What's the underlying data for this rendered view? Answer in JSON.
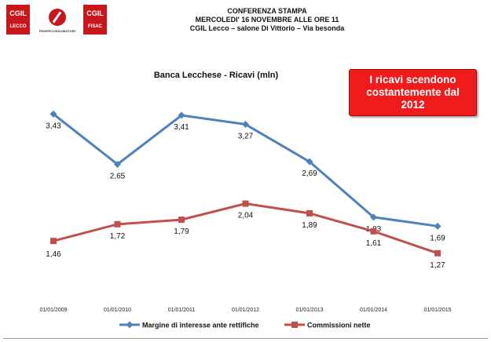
{
  "logos": {
    "left": {
      "big": "CGIL",
      "small": "LECCO"
    },
    "middle": {
      "caption": "FEDERCONSUMATORI"
    },
    "right": {
      "big": "CGIL",
      "small": "FISAC"
    }
  },
  "header": {
    "line1": "CONFERENZA STAMPA",
    "line2": "MERCOLEDI' 16 NOVEMBRE ALLE ORE 11",
    "line3": "CGIL Lecco – salone Di Vittorio – Via besonda"
  },
  "callout": "I ricavi scendono costantemente dal 2012",
  "chart_data": {
    "type": "line",
    "title": "Banca Lecchese - Ricavi (mln)",
    "categories": [
      "01/01/2009",
      "01/01/2010",
      "01/01/2011",
      "01/01/2012",
      "01/01/2013",
      "01/01/2014",
      "01/01/2015"
    ],
    "series": [
      {
        "name": "Margine di interesse ante rettifiche",
        "color": "#4f81bd",
        "marker": "diamond",
        "labels": [
          "3,43",
          "2,65",
          "3,41",
          "3,27",
          "2,69",
          "1,83",
          "1,69"
        ],
        "values": [
          3.43,
          2.65,
          3.41,
          3.27,
          2.69,
          1.83,
          1.69
        ]
      },
      {
        "name": "Commissioni nette",
        "color": "#c0504d",
        "marker": "square",
        "labels": [
          "1,46",
          "1,72",
          "1,79",
          "2,04",
          "1,89",
          "1,61",
          "1,27"
        ],
        "values": [
          1.46,
          1.72,
          1.79,
          2.04,
          1.89,
          1.61,
          1.27
        ]
      }
    ],
    "legend": "bottom",
    "grid": false
  }
}
